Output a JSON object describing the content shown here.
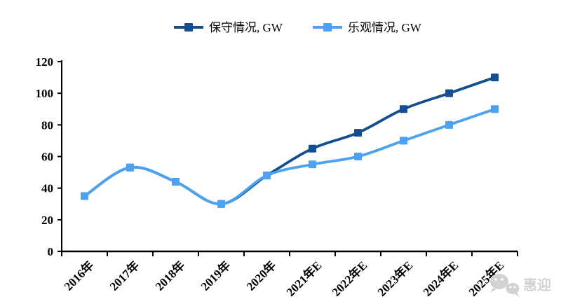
{
  "chart_data": {
    "type": "line",
    "title": "",
    "xlabel": "",
    "ylabel": "",
    "categories": [
      "2016年",
      "2017年",
      "2018年",
      "2019年",
      "2020年",
      "2021年E",
      "2022年E",
      "2023年E",
      "2024年E",
      "2025年E"
    ],
    "series": [
      {
        "name": "保守情况, GW",
        "color": "#134F90",
        "values": [
          35,
          53,
          44,
          30,
          48,
          65,
          75,
          90,
          100,
          110
        ]
      },
      {
        "name": "乐观情况, GW",
        "color": "#4DA2F0",
        "values": [
          35,
          53,
          44,
          30,
          48,
          55,
          60,
          70,
          80,
          90
        ]
      }
    ],
    "ylim": [
      0,
      120
    ],
    "yticks": [
      0,
      20,
      40,
      60,
      80,
      100,
      120
    ],
    "smooth": true,
    "grid": false,
    "legend_position": "top",
    "axis_color": "#000000",
    "tick_label_color": "#000000",
    "x_label_rotation_deg": -45
  },
  "watermark": {
    "icon": "wechat-icon",
    "text": "惠迎",
    "color": "#d2d2d2"
  }
}
